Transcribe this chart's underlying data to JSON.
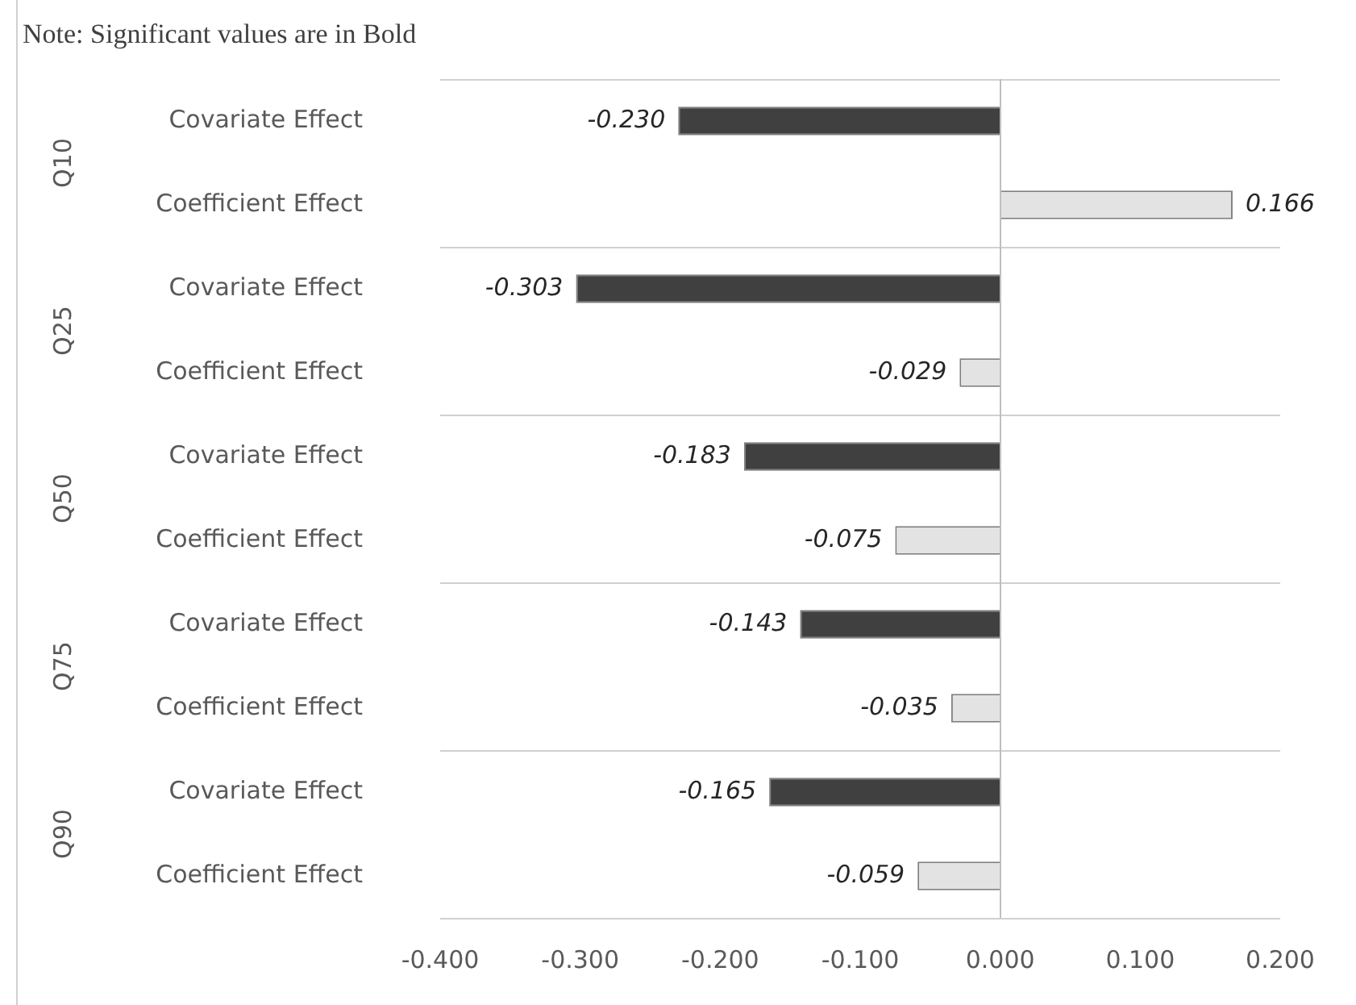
{
  "chart_data": {
    "type": "bar",
    "orientation": "horizontal",
    "categories": [
      "Covariate Effect",
      "Coefficient Effect",
      "Covariate Effect",
      "Coefficient Effect",
      "Covariate Effect",
      "Coefficient Effect",
      "Covariate Effect",
      "Coefficient Effect",
      "Covariate Effect",
      "Coefficient Effect"
    ],
    "values": [
      -0.23,
      0.166,
      -0.303,
      -0.029,
      -0.183,
      -0.075,
      -0.143,
      -0.035,
      -0.165,
      -0.059
    ],
    "colors": [
      "#404040",
      "#e3e3e3",
      "#404040",
      "#e3e3e3",
      "#404040",
      "#e3e3e3",
      "#404040",
      "#e3e3e3",
      "#404040",
      "#e3e3e3"
    ],
    "value_labels": [
      "-0.230",
      "0.166",
      "-0.303",
      "-0.029",
      "-0.183",
      "-0.075",
      "-0.143",
      "-0.035",
      "-0.165",
      "-0.059"
    ],
    "xlim": [
      -0.4,
      0.2
    ],
    "xticks": [
      {
        "value": -0.4,
        "label": "-0.400"
      },
      {
        "value": -0.3,
        "label": "-0.300"
      },
      {
        "value": -0.2,
        "label": "-0.200"
      },
      {
        "value": -0.1,
        "label": "-0.100"
      },
      {
        "value": 0,
        "label": "0.000"
      },
      {
        "value": 0.1,
        "label": "0.100"
      },
      {
        "value": 0.2,
        "label": "0.200"
      }
    ],
    "annotations": [
      "Note: Significant values are in Bold",
      "Q10",
      "Q25",
      "Q50",
      "Q75",
      "Q90"
    ]
  }
}
